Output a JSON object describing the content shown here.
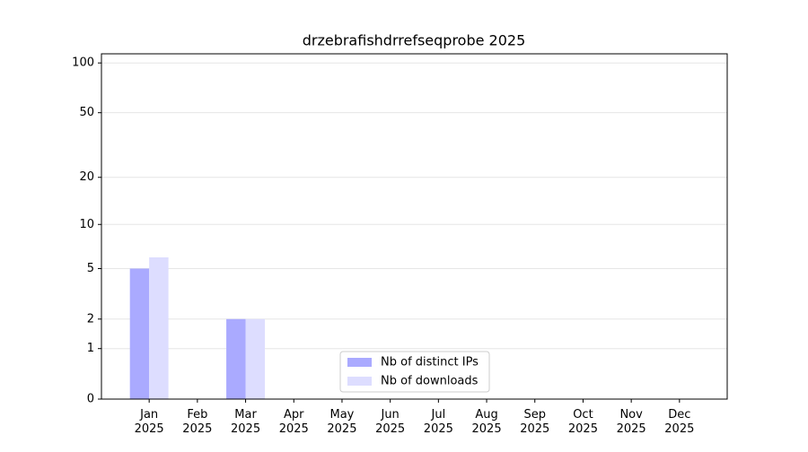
{
  "chart_data": {
    "type": "bar",
    "title": "drzebrafishdrrefseqprobe 2025",
    "categories": [
      "Jan\n2025",
      "Feb\n2025",
      "Mar\n2025",
      "Apr\n2025",
      "May\n2025",
      "Jun\n2025",
      "Jul\n2025",
      "Aug\n2025",
      "Sep\n2025",
      "Oct\n2025",
      "Nov\n2025",
      "Dec\n2025"
    ],
    "series": [
      {
        "name": "Nb of distinct IPs",
        "color": "#aaaaff",
        "values": [
          5,
          0,
          2,
          0,
          0,
          0,
          0,
          0,
          0,
          0,
          0,
          0
        ]
      },
      {
        "name": "Nb of downloads",
        "color": "#ddddff",
        "values": [
          6,
          0,
          2,
          0,
          0,
          0,
          0,
          0,
          0,
          0,
          0,
          0
        ]
      }
    ],
    "yscale": "log1p",
    "ylim": [
      0,
      113.5
    ],
    "yticks": [
      0,
      1,
      2,
      5,
      10,
      20,
      50,
      100
    ],
    "grid": true,
    "legend": "lower center"
  }
}
